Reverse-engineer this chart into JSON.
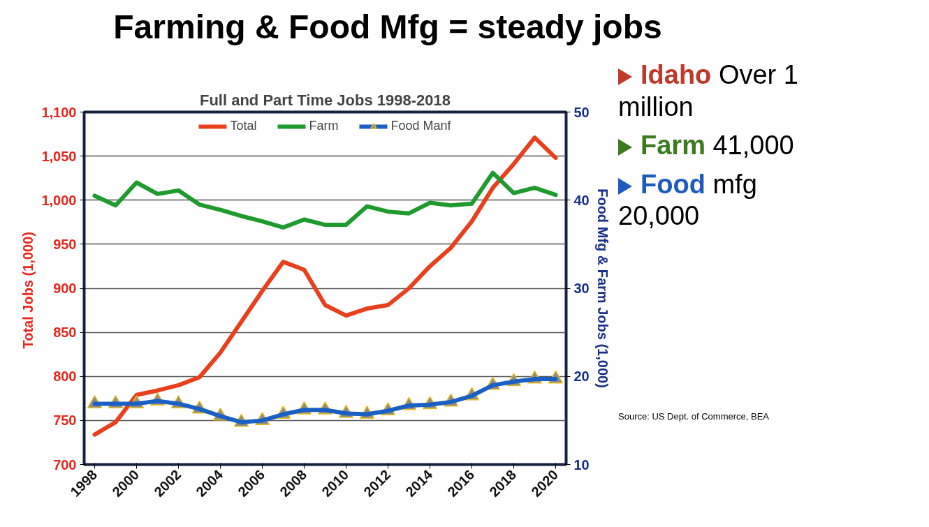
{
  "chart_data": {
    "type": "line",
    "title": "Farming & Food Mfg = steady jobs",
    "subtitle": "Full and Part Time Jobs 1998-2018",
    "ylabel": "Total  Jobs (1,000)",
    "y2label": "Food Mfg & Farm Jobs (1,000)",
    "x": [
      1998,
      1999,
      2000,
      2001,
      2002,
      2003,
      2004,
      2005,
      2006,
      2007,
      2008,
      2009,
      2010,
      2011,
      2012,
      2013,
      2014,
      2015,
      2016,
      2017,
      2018,
      2019,
      2020
    ],
    "xlim": [
      1997.5,
      2020.5
    ],
    "xticks": [
      1998,
      2000,
      2002,
      2004,
      2006,
      2008,
      2010,
      2012,
      2014,
      2016,
      2018,
      2020
    ],
    "ylim": [
      700,
      1100
    ],
    "yticks": [
      {
        "value": 700,
        "label": "700"
      },
      {
        "value": 750,
        "label": "750"
      },
      {
        "value": 800,
        "label": "800"
      },
      {
        "value": 850,
        "label": "850"
      },
      {
        "value": 900,
        "label": "900"
      },
      {
        "value": 950,
        "label": "950"
      },
      {
        "value": 1000,
        "label": "1,000"
      },
      {
        "value": 1050,
        "label": "1,050"
      },
      {
        "value": 1100,
        "label": "1,100"
      }
    ],
    "y2lim": [
      10,
      50
    ],
    "y2ticks": [
      10,
      20,
      30,
      40,
      50
    ],
    "series": [
      {
        "name": "Total",
        "color": "#e8401c",
        "values": [
          734,
          748,
          779,
          784,
          790,
          799,
          827,
          862,
          897,
          930,
          921,
          881,
          869,
          877,
          881,
          900,
          925,
          946,
          976,
          1014,
          1041,
          1071,
          1048
        ]
      },
      {
        "name": "Farm",
        "color": "#1f9a2e",
        "axis": "y2",
        "values": [
          40.5,
          39.4,
          42.0,
          40.7,
          41.1,
          39.5,
          38.9,
          38.2,
          37.6,
          36.9,
          37.8,
          37.2,
          37.2,
          39.3,
          38.7,
          38.5,
          39.7,
          39.4,
          39.6,
          43.1,
          40.8,
          41.4,
          40.6
        ]
      },
      {
        "name": "Food Manf",
        "color": "#1a5fc4",
        "axis": "y2",
        "marker": "triangle",
        "values": [
          16.9,
          16.9,
          16.9,
          17.2,
          16.9,
          16.3,
          15.5,
          14.8,
          15.0,
          15.7,
          16.2,
          16.2,
          15.8,
          15.7,
          16.1,
          16.7,
          16.8,
          17.1,
          17.8,
          19.0,
          19.4,
          19.7,
          19.7
        ]
      }
    ],
    "grid": "y",
    "legend": "top",
    "line_style": "solid",
    "annotations": [
      "Idaho Over 1 million",
      "Farm 41,000",
      "Food mfg 20,000",
      "Source: US Dept. of Commerce, BEA"
    ]
  }
}
